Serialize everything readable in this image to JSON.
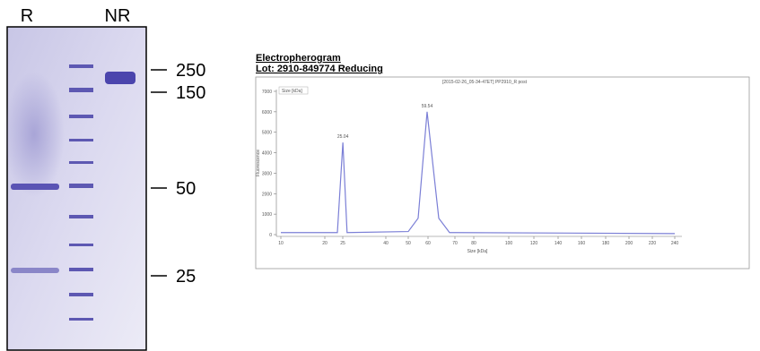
{
  "gel": {
    "lanes": [
      "R",
      "NR"
    ],
    "markers": [
      "250",
      "150",
      "50",
      "25"
    ]
  },
  "chart_data": {
    "type": "line",
    "title": "Electropherogram",
    "subtitle": "Lot: 2910-849774 Reducing",
    "header": "[2015-02-26_05-34-47ET] PP2910_R post",
    "legend_box": "Size [kDa]",
    "x_label": "Size [kDa]",
    "y_label": "Fluorescence",
    "x": [
      10,
      23.5,
      25.04,
      26.5,
      50,
      55,
      59.54,
      64,
      68,
      240
    ],
    "series": [
      {
        "name": "Size [kDa]",
        "color": "#7b7fd6",
        "values": [
          100,
          100,
          4500,
          100,
          150,
          800,
          6000,
          800,
          100,
          50
        ]
      }
    ],
    "annotations": [
      {
        "x": 25.04,
        "y": 4500,
        "text": "25.04"
      },
      {
        "x": 59.54,
        "y": 6000,
        "text": "59.54"
      }
    ],
    "ylim": [
      0,
      7000
    ],
    "yticks": [
      0,
      1000,
      2000,
      3000,
      4000,
      5000,
      6000,
      7000
    ],
    "xlim": [
      10,
      240
    ],
    "xticks": [
      10,
      20,
      25,
      40,
      50,
      60,
      70,
      80,
      100,
      120,
      140,
      160,
      180,
      200,
      220,
      240
    ]
  }
}
